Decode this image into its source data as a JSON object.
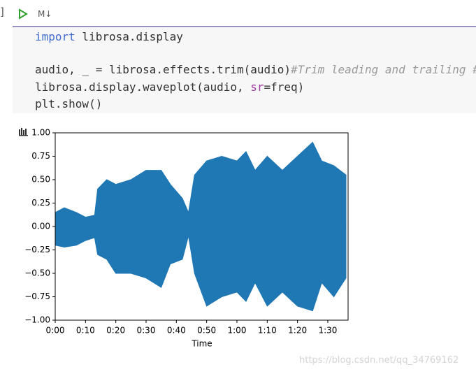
{
  "cell": {
    "bracket": "]",
    "type_label": "M↓"
  },
  "code": {
    "lines": [
      [
        "import",
        " librosa.display"
      ],
      [
        "audio, _ = librosa.effects.trim(audio)",
        "#Trim leading and trailing #"
      ],
      [
        "librosa.display.waveplot(audio, ",
        "sr",
        "=freq)"
      ],
      [
        "plt.show()"
      ]
    ]
  },
  "chart_data": {
    "type": "area",
    "xlabel": "Time",
    "color": "#1f77b4",
    "x": [
      0,
      3,
      7,
      10,
      13,
      14,
      17,
      20,
      25,
      30,
      35,
      38,
      42,
      44,
      46,
      50,
      55,
      60,
      63,
      66,
      70,
      75,
      80,
      85,
      88,
      92,
      96
    ],
    "series": [
      {
        "values": [
          0.15,
          0.2,
          0.15,
          0.1,
          0.12,
          0.4,
          0.5,
          0.45,
          0.5,
          0.6,
          0.6,
          0.45,
          0.3,
          0.15,
          0.55,
          0.7,
          0.75,
          0.7,
          0.8,
          0.6,
          0.75,
          0.6,
          0.75,
          0.9,
          0.7,
          0.65,
          0.55
        ]
      },
      {
        "values": [
          -0.2,
          -0.22,
          -0.2,
          -0.15,
          -0.12,
          -0.3,
          -0.35,
          -0.5,
          -0.5,
          -0.55,
          -0.65,
          -0.4,
          -0.35,
          -0.1,
          -0.5,
          -0.85,
          -0.75,
          -0.7,
          -0.8,
          -0.6,
          -0.85,
          -0.7,
          -0.85,
          -0.9,
          -0.6,
          -0.75,
          -0.55
        ]
      }
    ],
    "xlim": [
      0,
      96.7
    ],
    "ylim": [
      -1,
      1
    ],
    "xticks": [
      {
        "value": 0,
        "label": "0:00"
      },
      {
        "value": 10,
        "label": "0:10"
      },
      {
        "value": 20,
        "label": "0:20"
      },
      {
        "value": 30,
        "label": "0:30"
      },
      {
        "value": 40,
        "label": "0:40"
      },
      {
        "value": 50,
        "label": "0:50"
      },
      {
        "value": 60,
        "label": "1:00"
      },
      {
        "value": 70,
        "label": "1:10"
      },
      {
        "value": 80,
        "label": "1:20"
      },
      {
        "value": 90,
        "label": "1:30"
      }
    ],
    "yticks": [
      {
        "value": -1,
        "label": "−1.00"
      },
      {
        "value": -0.75,
        "label": "−0.75"
      },
      {
        "value": -0.5,
        "label": "−0.50"
      },
      {
        "value": -0.25,
        "label": "−0.25"
      },
      {
        "value": 0,
        "label": "0.00"
      },
      {
        "value": 0.25,
        "label": "0.25"
      },
      {
        "value": 0.5,
        "label": "0.50"
      },
      {
        "value": 0.75,
        "label": "0.75"
      },
      {
        "value": 1,
        "label": "1.00"
      }
    ]
  },
  "watermark": "https://blog.csdn.net/qq_34769162"
}
